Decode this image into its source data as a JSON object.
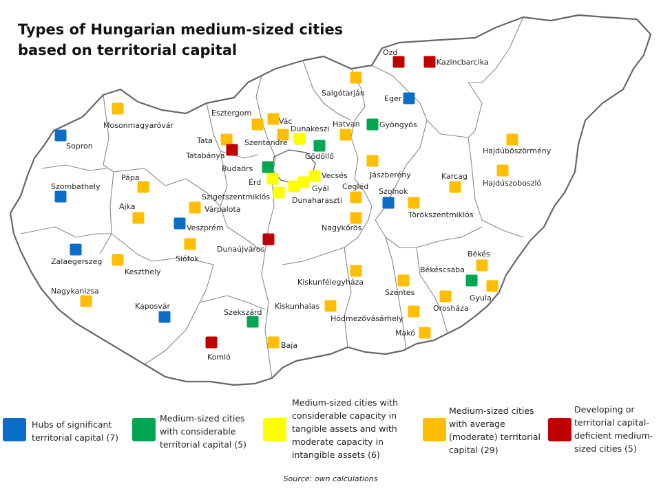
{
  "title": [
    "Types of Hungarian medium-sized cities",
    "based on territorial capital"
  ],
  "source": "Source: own calculations",
  "colors": {
    "hub": "#0a6ec8",
    "considerable": "#00a651",
    "tangible": "#ffff00",
    "average": "#ffbf00",
    "deficient": "#c00000",
    "border": "#555555"
  },
  "legend": [
    {
      "category": "hub",
      "label": [
        "Hubs of significant",
        "territorial capital (7)"
      ]
    },
    {
      "category": "considerable",
      "label": [
        "Medium-sized cities",
        "with considerable",
        "territorial capital (5)"
      ]
    },
    {
      "category": "tangible",
      "label": [
        "Medium-sized cities with",
        "considerable capacity in",
        "tangible assets and with",
        "moderate capacity in",
        "intangible assets (6)"
      ]
    },
    {
      "category": "average",
      "label": [
        "Medium-sized cities",
        "with average",
        "(moderate) territorial",
        "capital (29)"
      ]
    },
    {
      "category": "deficient",
      "label": [
        "Developing or",
        "territorial capital-",
        "deficient medium-",
        "sized cities (5)"
      ]
    }
  ],
  "cities": [
    {
      "name": "Ózd",
      "category": "deficient"
    },
    {
      "name": "Kazincbarcika",
      "category": "deficient"
    },
    {
      "name": "Salgótarján",
      "category": "average"
    },
    {
      "name": "Eger",
      "category": "hub"
    },
    {
      "name": "Mosonmagyaróvár",
      "category": "average"
    },
    {
      "name": "Sopron",
      "category": "hub"
    },
    {
      "name": "Esztergom",
      "category": "average"
    },
    {
      "name": "Vác",
      "category": "average"
    },
    {
      "name": "Dunakeszi",
      "category": "tangible"
    },
    {
      "name": "Hatvan",
      "category": "average"
    },
    {
      "name": "Gyöngyös",
      "category": "considerable"
    },
    {
      "name": "Tata",
      "category": "average"
    },
    {
      "name": "Szentendre",
      "category": "average"
    },
    {
      "name": "Tatabánya",
      "category": "deficient"
    },
    {
      "name": "Gödöllő",
      "category": "considerable"
    },
    {
      "name": "Hajdúböszörmény",
      "category": "average"
    },
    {
      "name": "Budaörs",
      "category": "considerable"
    },
    {
      "name": "Érd",
      "category": "tangible"
    },
    {
      "name": "Vecsés",
      "category": "tangible"
    },
    {
      "name": "Gyál",
      "category": "tangible"
    },
    {
      "name": "Dunaharaszti",
      "category": "tangible"
    },
    {
      "name": "Szigetszentmiklós",
      "category": "tangible"
    },
    {
      "name": "Jászberény",
      "category": "average"
    },
    {
      "name": "Karcag",
      "category": "average"
    },
    {
      "name": "Hajdúszoboszló",
      "category": "average"
    },
    {
      "name": "Szombathely",
      "category": "hub"
    },
    {
      "name": "Pápa",
      "category": "average"
    },
    {
      "name": "Cegléd",
      "category": "average"
    },
    {
      "name": "Szolnok",
      "category": "hub"
    },
    {
      "name": "Törökszentmiklós",
      "category": "average"
    },
    {
      "name": "Ajka",
      "category": "average"
    },
    {
      "name": "Várpalota",
      "category": "average"
    },
    {
      "name": "Veszprém",
      "category": "hub"
    },
    {
      "name": "Nagykőrös",
      "category": "average"
    },
    {
      "name": "Dunaújváros",
      "category": "deficient"
    },
    {
      "name": "Zalaegerszeg",
      "category": "hub"
    },
    {
      "name": "Keszthely",
      "category": "average"
    },
    {
      "name": "Siófok",
      "category": "average"
    },
    {
      "name": "Békés",
      "category": "average"
    },
    {
      "name": "Békéscsaba",
      "category": "considerable"
    },
    {
      "name": "Gyula",
      "category": "average"
    },
    {
      "name": "Kiskunfélegyháza",
      "category": "average"
    },
    {
      "name": "Szentes",
      "category": "average"
    },
    {
      "name": "Nagykanizsa",
      "category": "average"
    },
    {
      "name": "Kaposvár",
      "category": "hub"
    },
    {
      "name": "Kiskunhalas",
      "category": "average"
    },
    {
      "name": "Orosháza",
      "category": "average"
    },
    {
      "name": "Szekszárd",
      "category": "considerable"
    },
    {
      "name": "Hódmezővásárhely",
      "category": "average"
    },
    {
      "name": "Makó",
      "category": "average"
    },
    {
      "name": "Komló",
      "category": "deficient"
    },
    {
      "name": "Baja",
      "category": "average"
    }
  ]
}
